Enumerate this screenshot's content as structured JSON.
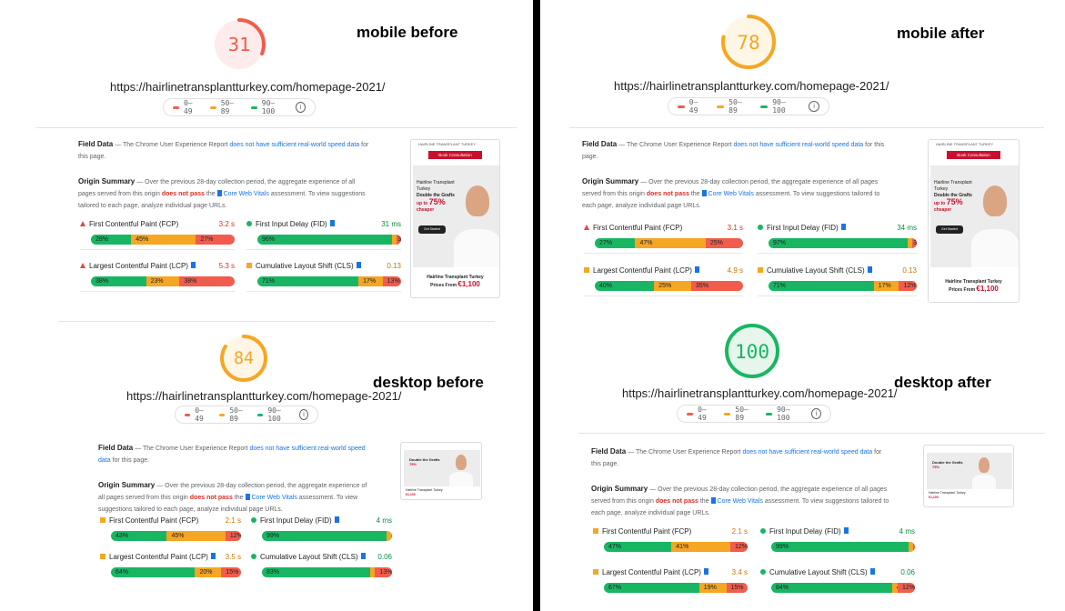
{
  "common": {
    "url": "https://hairlinetransplantturkey.com/homepage-2021/",
    "legend": [
      "0–49",
      "50–89",
      "90–100"
    ],
    "info_glyph": "i",
    "field_data_label": "Field Data",
    "field_data_text": "— The Chrome User Experience Report",
    "field_data_link": "does not have sufficient real-world speed data",
    "field_data_tail": "for this page.",
    "origin_label": "Origin Summary",
    "origin_text": "— Over the previous 28-day collection period, the aggregate experience of all pages served from this origin",
    "origin_fail": "does not pass",
    "origin_the": "the",
    "origin_link": "Core Web Vitals",
    "origin_tail": "assessment. To view suggestions tailored to each page, analyze individual page URLs.",
    "metric_names": {
      "fcp": "First Contentful Paint (FCP)",
      "fid": "First Input Delay (FID)",
      "lcp": "Largest Contentful Paint (LCP)",
      "cls": "Cumulative Layout Shift (CLS)"
    },
    "thumb": {
      "logo": "HAIRLINE TRANSPLANT TURKEY",
      "button": "Book Consultation",
      "kicker": "Hairline Transplant Turkey",
      "headline": "Double the Grafts",
      "up_to": "up to",
      "pct": "75%",
      "cheaper": "cheaper",
      "cta": "Get Started",
      "footer": "Hairline Transplant Turkey",
      "prices_from": "Prices From",
      "price": "€1,100"
    }
  },
  "colors": {
    "red": "#f25c4c",
    "orange": "#f5a623",
    "green": "#18b663",
    "link": "#1a73e8"
  },
  "panels": {
    "mobile_before": {
      "caption": "mobile before",
      "score": "31",
      "score_value": 31,
      "fcp": {
        "value": "3.2 s",
        "dist": [
          28,
          45,
          27
        ],
        "labels": [
          "28%",
          "45%",
          "27%"
        ]
      },
      "fid": {
        "value": "31 ms",
        "dist": [
          96,
          1,
          3
        ],
        "labels": [
          "96%",
          "",
          "3%"
        ]
      },
      "lcp": {
        "value": "5.3 s",
        "dist": [
          38,
          23,
          38
        ],
        "labels": [
          "38%",
          "23%",
          "38%"
        ]
      },
      "cls": {
        "value": "0.13",
        "dist": [
          71,
          17,
          13
        ],
        "labels": [
          "71%",
          "17%",
          "13%"
        ]
      }
    },
    "mobile_after": {
      "caption": "mobile after",
      "score": "78",
      "score_value": 78,
      "fcp": {
        "value": "3.1 s",
        "dist": [
          27,
          47,
          25
        ],
        "labels": [
          "27%",
          "47%",
          "25%"
        ]
      },
      "fid": {
        "value": "34 ms",
        "dist": [
          97,
          0,
          3
        ],
        "labels": [
          "97%",
          "",
          "3%"
        ]
      },
      "lcp": {
        "value": "4.9 s",
        "dist": [
          40,
          25,
          35
        ],
        "labels": [
          "40%",
          "25%",
          "35%"
        ]
      },
      "cls": {
        "value": "0.13",
        "dist": [
          71,
          17,
          12
        ],
        "labels": [
          "71%",
          "17%",
          "12%"
        ]
      }
    },
    "desktop_before": {
      "caption": "desktop before",
      "score": "84",
      "score_value": 84,
      "fcp": {
        "value": "2.1 s",
        "dist": [
          43,
          45,
          12
        ],
        "labels": [
          "43%",
          "45%",
          "12%"
        ]
      },
      "fid": {
        "value": "4 ms",
        "dist": [
          99,
          0,
          1
        ],
        "labels": [
          "99%",
          "",
          "1%"
        ]
      },
      "lcp": {
        "value": "3.5 s",
        "dist": [
          64,
          20,
          15
        ],
        "labels": [
          "64%",
          "20%",
          "15%"
        ]
      },
      "cls": {
        "value": "0.06",
        "dist": [
          83,
          4,
          13
        ],
        "labels": [
          "83%",
          "4%",
          "13%"
        ]
      }
    },
    "desktop_after": {
      "caption": "desktop after",
      "score": "100",
      "score_value": 100,
      "fcp": {
        "value": "2.1 s",
        "dist": [
          47,
          41,
          12
        ],
        "labels": [
          "47%",
          "41%",
          "12%"
        ]
      },
      "fid": {
        "value": "4 ms",
        "dist": [
          99,
          0,
          1
        ],
        "labels": [
          "99%",
          "",
          "1%"
        ]
      },
      "lcp": {
        "value": "3.4 s",
        "dist": [
          67,
          19,
          15
        ],
        "labels": [
          "67%",
          "19%",
          "15%"
        ]
      },
      "cls": {
        "value": "0.06",
        "dist": [
          84,
          4,
          12
        ],
        "labels": [
          "84%",
          "4%",
          "12%"
        ]
      }
    }
  }
}
